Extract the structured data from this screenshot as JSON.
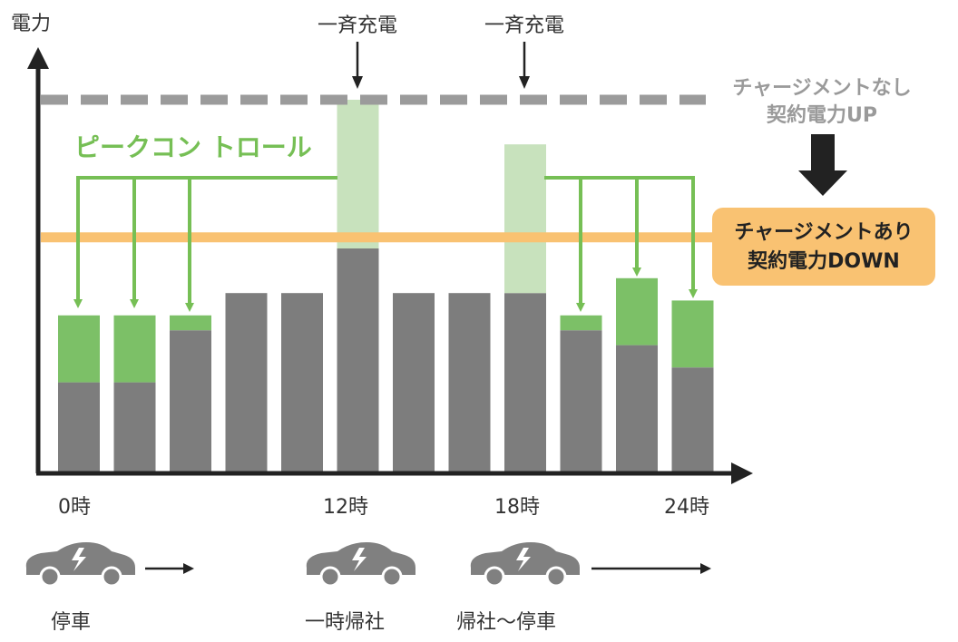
{
  "axis": {
    "y_label": "電力"
  },
  "annotations": {
    "charge_1": "一斉充電",
    "charge_2": "一斉充電",
    "peak_control": "ピークコン トロール",
    "no_mgmt_line1": "チャージメントなし",
    "no_mgmt_line2": "契約電力UP",
    "with_mgmt_line1": "チャージメントあり",
    "with_mgmt_line2": "契約電力DOWN"
  },
  "time_labels": [
    "0時",
    "12時",
    "18時",
    "24時"
  ],
  "car_labels": {
    "parked": "停車",
    "temp_return": "一時帰社",
    "return_park": "帰社～停車"
  },
  "colors": {
    "base": "#7d7d7d",
    "shifted": "#7cc067",
    "peak": "#c8e2bd",
    "limit": "#f9c272",
    "dashed": "#9b9b9b",
    "arrow_green": "#76bf55"
  },
  "chart_data": {
    "type": "bar",
    "ylim": [
      0,
      100
    ],
    "contract_limit_with_mgmt": 63,
    "contract_limit_without_mgmt": 100,
    "series": [
      {
        "values": [
          24,
          24,
          38,
          48,
          48,
          60,
          48,
          48,
          48,
          38,
          34,
          28
        ]
      },
      {
        "values": [
          18,
          18,
          4,
          0,
          0,
          0,
          0,
          0,
          0,
          4,
          18,
          18
        ]
      },
      {
        "values": [
          0,
          0,
          0,
          0,
          0,
          40,
          0,
          0,
          40,
          0,
          0,
          0
        ]
      }
    ]
  }
}
